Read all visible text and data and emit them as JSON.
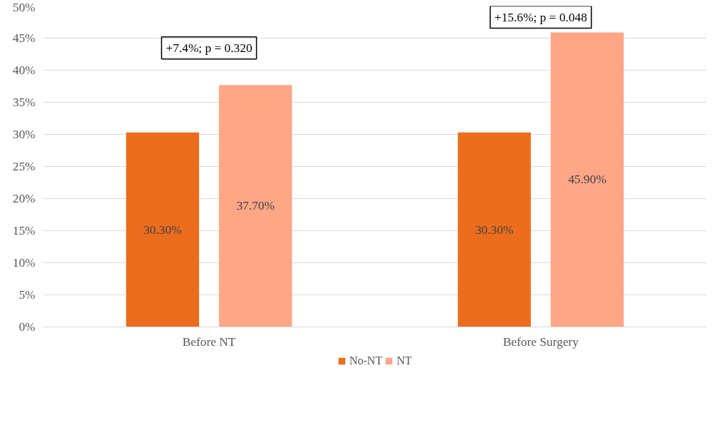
{
  "chart_data": {
    "type": "bar",
    "categories": [
      "Before NT",
      "Before Surgery"
    ],
    "series": [
      {
        "name": "No-NT",
        "color": "#ed6d1f",
        "values": [
          30.3,
          30.3
        ],
        "value_labels": [
          "30.30%",
          "30.30%"
        ]
      },
      {
        "name": "NT",
        "color": "#ffa687",
        "values": [
          37.7,
          45.9
        ],
        "value_labels": [
          "37.70%",
          "45.90%"
        ]
      }
    ],
    "ylim": [
      0,
      50
    ],
    "yticks": [
      {
        "value": 0,
        "label": "0%"
      },
      {
        "value": 5,
        "label": "5%"
      },
      {
        "value": 10,
        "label": "10%"
      },
      {
        "value": 15,
        "label": "15%"
      },
      {
        "value": 20,
        "label": "20%"
      },
      {
        "value": 25,
        "label": "25%"
      },
      {
        "value": 30,
        "label": "30%"
      },
      {
        "value": 35,
        "label": "35%"
      },
      {
        "value": 40,
        "label": "40%"
      },
      {
        "value": 45,
        "label": "45%"
      },
      {
        "value": 50,
        "label": "50%"
      }
    ],
    "annotations": [
      "+7.4%; p = 0.320",
      "+15.6%; p = 0.048"
    ],
    "grid": "y",
    "legend": "bottom"
  }
}
